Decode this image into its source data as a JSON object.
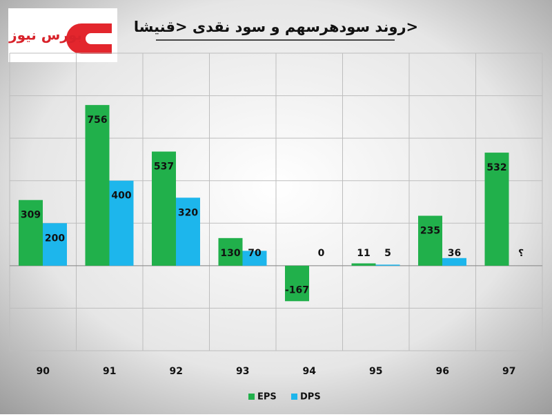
{
  "logo": "بورس نیوز",
  "chart_data": {
    "type": "bar",
    "title": "روند سودهرسهم و سود نقدی <قنیشا>",
    "categories": [
      "90",
      "91",
      "92",
      "93",
      "94",
      "95",
      "96",
      "97"
    ],
    "series": [
      {
        "name": "EPS",
        "color": "#21b04b",
        "values": [
          309,
          756,
          537,
          130,
          -167,
          11,
          235,
          532
        ]
      },
      {
        "name": "DPS",
        "color": "#1db6ec",
        "values": [
          200,
          400,
          320,
          70,
          0,
          5,
          36,
          null
        ],
        "value_labels": [
          "200",
          "400",
          "320",
          "70",
          "0",
          "5",
          "36",
          "؟"
        ]
      }
    ],
    "ylim": [
      -400,
      1000
    ],
    "yticks": [
      -400,
      -200,
      0,
      200,
      400,
      600,
      800,
      1000
    ],
    "grid": true,
    "legend": "bottom"
  }
}
